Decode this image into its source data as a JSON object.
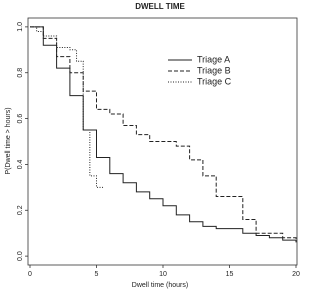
{
  "chart_data": {
    "type": "line",
    "title": "DWELL TIME",
    "xlabel": "Dwell time (hours)",
    "ylabel": "P(Dwell time > hours)",
    "xlim": [
      0,
      20
    ],
    "ylim": [
      -0.03,
      1.03
    ],
    "xticks": [
      0,
      5,
      10,
      15,
      20
    ],
    "yticks": [
      {
        "value": 0,
        "label": "0.0"
      },
      0.2,
      0.4,
      0.6,
      0.8,
      {
        "value": 1,
        "label": "1.0"
      }
    ],
    "step": true,
    "legend": "upper right",
    "series": [
      {
        "name": "Triage A",
        "color": "#222222",
        "dash": "solid",
        "x": [
          0,
          1,
          2,
          3,
          4,
          5,
          6,
          7,
          8,
          9,
          10,
          11,
          12,
          13,
          14,
          15,
          16,
          17,
          18,
          19,
          20
        ],
        "values": [
          1.0,
          0.92,
          0.82,
          0.7,
          0.55,
          0.43,
          0.36,
          0.32,
          0.28,
          0.25,
          0.22,
          0.18,
          0.15,
          0.13,
          0.12,
          0.12,
          0.1,
          0.09,
          0.08,
          0.07,
          0.06
        ]
      },
      {
        "name": "Triage B",
        "color": "#222222",
        "dash": "dashed",
        "x": [
          0,
          1,
          2,
          3,
          4,
          5,
          6,
          7,
          8,
          9,
          10,
          11,
          12,
          13,
          14,
          15,
          16,
          17,
          18,
          19,
          20
        ],
        "values": [
          1.0,
          0.95,
          0.87,
          0.8,
          0.72,
          0.64,
          0.62,
          0.57,
          0.53,
          0.5,
          0.5,
          0.48,
          0.42,
          0.35,
          0.26,
          0.26,
          0.16,
          0.1,
          0.1,
          0.08,
          0.07
        ]
      },
      {
        "name": "Triage C",
        "color": "#222222",
        "dash": "dotted",
        "x": [
          0,
          0.5,
          1,
          2,
          3,
          3.5,
          4,
          4.5,
          5,
          5.5
        ],
        "values": [
          1.0,
          0.98,
          0.96,
          0.91,
          0.9,
          0.85,
          0.55,
          0.35,
          0.3,
          0.3
        ]
      }
    ]
  }
}
